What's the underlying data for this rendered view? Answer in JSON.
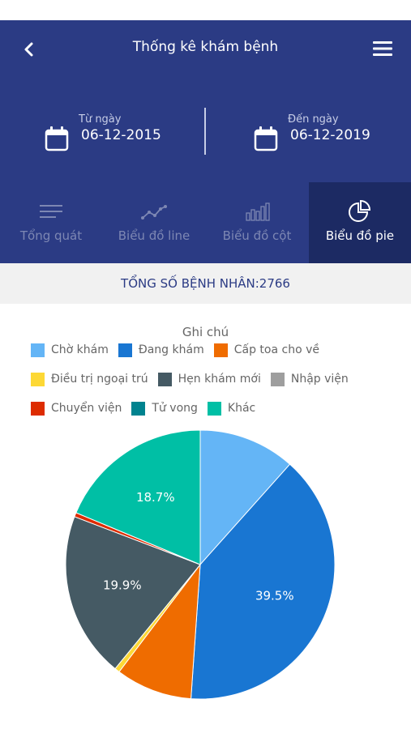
{
  "header": {
    "title": "Thống kê khám bệnh",
    "from_label": "Từ ngày",
    "from_value": "06-12-2015",
    "to_label": "Đến ngày",
    "to_value": "06-12-2019",
    "icons": [
      "back-chevron-icon",
      "hamburger-menu-icon",
      "calendar-icon"
    ]
  },
  "tabs": [
    {
      "label": "Tổng quát",
      "icon": "lines-icon",
      "active": false
    },
    {
      "label": "Biểu đồ line",
      "icon": "line-chart-icon",
      "active": false
    },
    {
      "label": "Biểu đồ cột",
      "icon": "bar-chart-icon",
      "active": false
    },
    {
      "label": "Biểu đồ pie",
      "icon": "pie-chart-icon",
      "active": true
    }
  ],
  "summary": {
    "total_text": "TỔNG SỐ BỆNH NHÂN:2766"
  },
  "legend": {
    "title": "Ghi chú",
    "items": [
      {
        "label": "Chờ khám",
        "color": "#64b5f6"
      },
      {
        "label": "Đang khám",
        "color": "#1976d2"
      },
      {
        "label": "Cấp toa cho về",
        "color": "#ef6c00"
      },
      {
        "label": "Điều trị ngoại trú",
        "color": "#fdd835"
      },
      {
        "label": "Hẹn khám mới",
        "color": "#455a64"
      },
      {
        "label": "Nhập viện",
        "color": "#9e9e9e"
      },
      {
        "label": "Chuyển viện",
        "color": "#dd2c00"
      },
      {
        "label": "Tử vong",
        "color": "#00838f"
      },
      {
        "label": "Khác",
        "color": "#00bfa5"
      }
    ]
  },
  "chart_data": {
    "type": "pie",
    "categories": [
      "Chờ khám",
      "Đang khám",
      "Cấp toa cho về",
      "Điều trị ngoại trú",
      "Hẹn khám mới",
      "Nhập viện",
      "Chuyển viện",
      "Tử vong",
      "Khác"
    ],
    "values": [
      11.6,
      39.5,
      9.2,
      0.6,
      19.9,
      0,
      0.5,
      0,
      18.7
    ],
    "value_labels": [
      "",
      "39.5%",
      "",
      "",
      "19.9%",
      "",
      "",
      "",
      "18.7%"
    ],
    "colors": [
      "#64b5f6",
      "#1976d2",
      "#ef6c00",
      "#fdd835",
      "#455a64",
      "#9e9e9e",
      "#dd2c00",
      "#00838f",
      "#00bfa5"
    ],
    "start": "top",
    "direction": "clockwise"
  }
}
